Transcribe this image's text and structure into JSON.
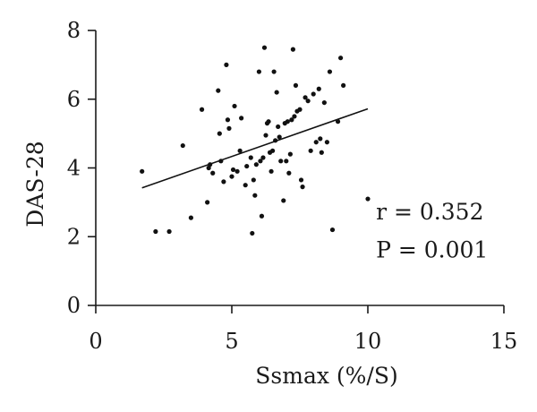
{
  "chart_data": {
    "type": "scatter",
    "xlabel": "Ssmax (%/S)",
    "ylabel": "DAS-28",
    "xlim": [
      0,
      15
    ],
    "ylim": [
      0,
      8
    ],
    "x_ticks": [
      "0",
      "5",
      "10",
      "15"
    ],
    "y_ticks": [
      "0",
      "2",
      "4",
      "6",
      "8"
    ],
    "grid": false,
    "points": [
      [
        1.7,
        3.9
      ],
      [
        2.2,
        2.15
      ],
      [
        2.7,
        2.15
      ],
      [
        3.2,
        4.65
      ],
      [
        3.5,
        2.55
      ],
      [
        3.9,
        5.7
      ],
      [
        4.1,
        3.0
      ],
      [
        4.15,
        4.0
      ],
      [
        4.2,
        4.1
      ],
      [
        4.3,
        3.85
      ],
      [
        4.5,
        6.25
      ],
      [
        4.55,
        5.0
      ],
      [
        4.6,
        4.2
      ],
      [
        4.7,
        3.6
      ],
      [
        4.8,
        7.0
      ],
      [
        4.85,
        5.4
      ],
      [
        4.9,
        5.15
      ],
      [
        5.0,
        3.75
      ],
      [
        5.05,
        3.95
      ],
      [
        5.1,
        5.8
      ],
      [
        5.2,
        3.9
      ],
      [
        5.3,
        4.5
      ],
      [
        5.35,
        5.45
      ],
      [
        5.5,
        3.5
      ],
      [
        5.55,
        4.05
      ],
      [
        5.7,
        4.3
      ],
      [
        5.75,
        2.1
      ],
      [
        5.8,
        3.65
      ],
      [
        5.85,
        3.2
      ],
      [
        5.9,
        4.1
      ],
      [
        6.0,
        6.8
      ],
      [
        6.05,
        4.2
      ],
      [
        6.1,
        2.6
      ],
      [
        6.15,
        4.3
      ],
      [
        6.2,
        7.5
      ],
      [
        6.25,
        4.95
      ],
      [
        6.3,
        5.3
      ],
      [
        6.35,
        5.35
      ],
      [
        6.4,
        4.45
      ],
      [
        6.45,
        3.9
      ],
      [
        6.5,
        4.5
      ],
      [
        6.55,
        6.8
      ],
      [
        6.6,
        4.8
      ],
      [
        6.65,
        6.2
      ],
      [
        6.7,
        5.2
      ],
      [
        6.75,
        4.9
      ],
      [
        6.8,
        4.2
      ],
      [
        6.9,
        3.05
      ],
      [
        6.95,
        5.3
      ],
      [
        7.0,
        4.2
      ],
      [
        7.05,
        5.35
      ],
      [
        7.1,
        3.85
      ],
      [
        7.15,
        4.4
      ],
      [
        7.2,
        5.4
      ],
      [
        7.25,
        7.45
      ],
      [
        7.3,
        5.5
      ],
      [
        7.35,
        6.4
      ],
      [
        7.4,
        5.65
      ],
      [
        7.5,
        5.7
      ],
      [
        7.55,
        3.65
      ],
      [
        7.6,
        3.45
      ],
      [
        7.7,
        6.05
      ],
      [
        7.8,
        5.95
      ],
      [
        7.9,
        4.5
      ],
      [
        8.0,
        6.15
      ],
      [
        8.1,
        4.75
      ],
      [
        8.2,
        6.3
      ],
      [
        8.25,
        4.85
      ],
      [
        8.3,
        4.45
      ],
      [
        8.4,
        5.9
      ],
      [
        8.5,
        4.75
      ],
      [
        8.6,
        6.8
      ],
      [
        8.7,
        2.2
      ],
      [
        8.9,
        5.35
      ],
      [
        9.0,
        7.2
      ],
      [
        9.1,
        6.4
      ],
      [
        10.0,
        3.1
      ]
    ],
    "trendline": {
      "x": [
        1.7,
        10.0
      ],
      "y": [
        3.42,
        5.72
      ]
    },
    "annotations": [
      {
        "text": "r = 0.352",
        "x": 10.3,
        "y": 2.5
      },
      {
        "text": "P = 0.001",
        "x": 10.3,
        "y": 1.4
      }
    ]
  }
}
